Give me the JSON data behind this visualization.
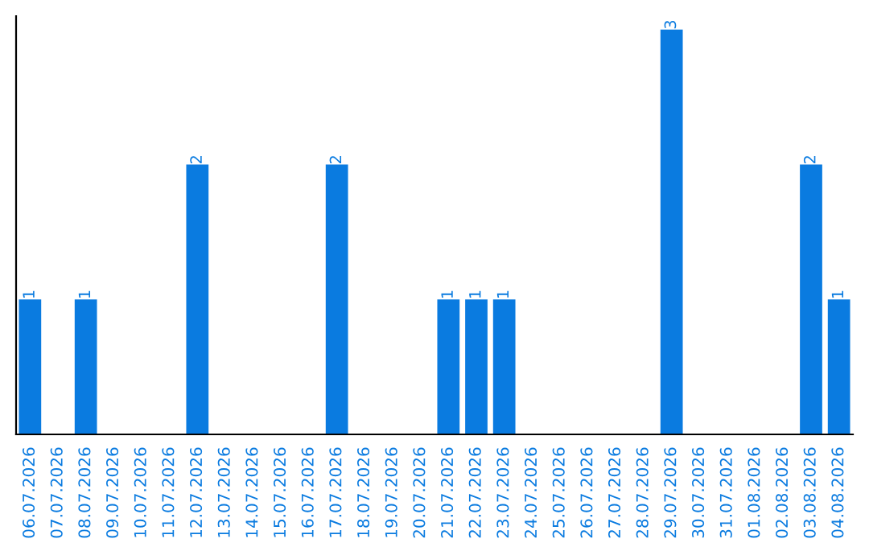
{
  "chart_data": {
    "type": "bar",
    "categories": [
      "06.07.2026",
      "07.07.2026",
      "08.07.2026",
      "09.07.2026",
      "10.07.2026",
      "11.07.2026",
      "12.07.2026",
      "13.07.2026",
      "14.07.2026",
      "15.07.2026",
      "16.07.2026",
      "17.07.2026",
      "18.07.2026",
      "19.07.2026",
      "20.07.2026",
      "21.07.2026",
      "22.07.2026",
      "23.07.2026",
      "24.07.2026",
      "25.07.2026",
      "26.07.2026",
      "27.07.2026",
      "28.07.2026",
      "29.07.2026",
      "30.07.2026",
      "31.07.2026",
      "01.08.2026",
      "02.08.2026",
      "03.08.2026",
      "04.08.2026"
    ],
    "values": [
      1,
      0,
      1,
      0,
      0,
      0,
      2,
      0,
      0,
      0,
      0,
      2,
      0,
      0,
      0,
      1,
      1,
      1,
      0,
      0,
      0,
      0,
      0,
      3,
      0,
      0,
      0,
      0,
      2,
      1
    ],
    "value_labels": [
      "1",
      null,
      "1",
      null,
      null,
      null,
      "2",
      null,
      null,
      null,
      null,
      "2",
      null,
      null,
      null,
      "1",
      "1",
      "1",
      null,
      null,
      null,
      null,
      null,
      "3",
      null,
      null,
      null,
      null,
      "2",
      "1"
    ],
    "color": "#0a7be0",
    "ylim": [
      0,
      3.1
    ],
    "tick_labels": "x",
    "grid": false,
    "legend": false
  }
}
